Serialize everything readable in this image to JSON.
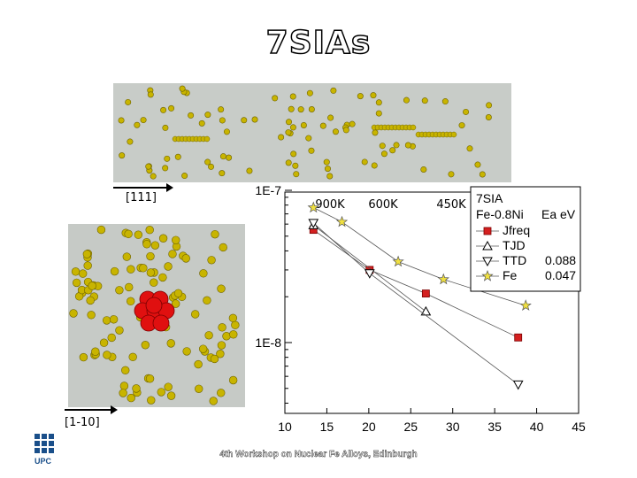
{
  "slide_title": "7SIAs",
  "direction_labels": {
    "top": "[111]",
    "left": "[1-10]"
  },
  "footer": "4th Workshop on Nuclear Fe Alloys, Edinburgh",
  "colors": {
    "title_fill": "#ffffff",
    "jfreq": "#d42020",
    "tjd": "#000000",
    "ttd": "#000000",
    "fe": "#f0e040",
    "atom": "#c8b400",
    "cluster": "#e01010"
  },
  "logo_text": "UPC",
  "chart_data": {
    "type": "line",
    "title": "",
    "xlabel": "",
    "ylabel": "",
    "y_scale": "log",
    "xlim": [
      10,
      45
    ],
    "x_ticks": [
      "10",
      "15",
      "20",
      "25",
      "30",
      "35",
      "40",
      "45"
    ],
    "y_ticks": [
      "1E-7",
      "1E-8"
    ],
    "temperature_labels": [
      "900K",
      "600K",
      "450K"
    ],
    "legend": {
      "placement": "top-right",
      "header": [
        "7SIA",
        "Fe-0.8Ni"
      ],
      "value_header": "Ea eV",
      "entries": [
        "Jfreq",
        "TJD",
        "TTD",
        "Fe"
      ],
      "values": [
        "",
        "",
        "0.088",
        "0.047"
      ]
    },
    "series": [
      {
        "name": "Jfreq",
        "marker": "square",
        "x": [
          13.4,
          20.1,
          26.8,
          37.8
        ],
        "y": [
          5.5e-08,
          3e-08,
          2.1e-08,
          1.08e-08
        ]
      },
      {
        "name": "TJD",
        "marker": "triangle-up",
        "x": [
          13.4,
          26.8
        ],
        "y": [
          5.9e-08,
          1.6e-08
        ]
      },
      {
        "name": "TTD",
        "marker": "triangle-down",
        "x": [
          13.4,
          20.1,
          37.8
        ],
        "y": [
          6.1e-08,
          2.85e-08,
          5.3e-09
        ]
      },
      {
        "name": "Fe",
        "marker": "star",
        "x": [
          13.4,
          16.8,
          23.5,
          28.9,
          38.7
        ],
        "y": [
          7.7e-08,
          6.2e-08,
          3.4e-08,
          2.6e-08,
          1.75e-08
        ]
      }
    ]
  }
}
